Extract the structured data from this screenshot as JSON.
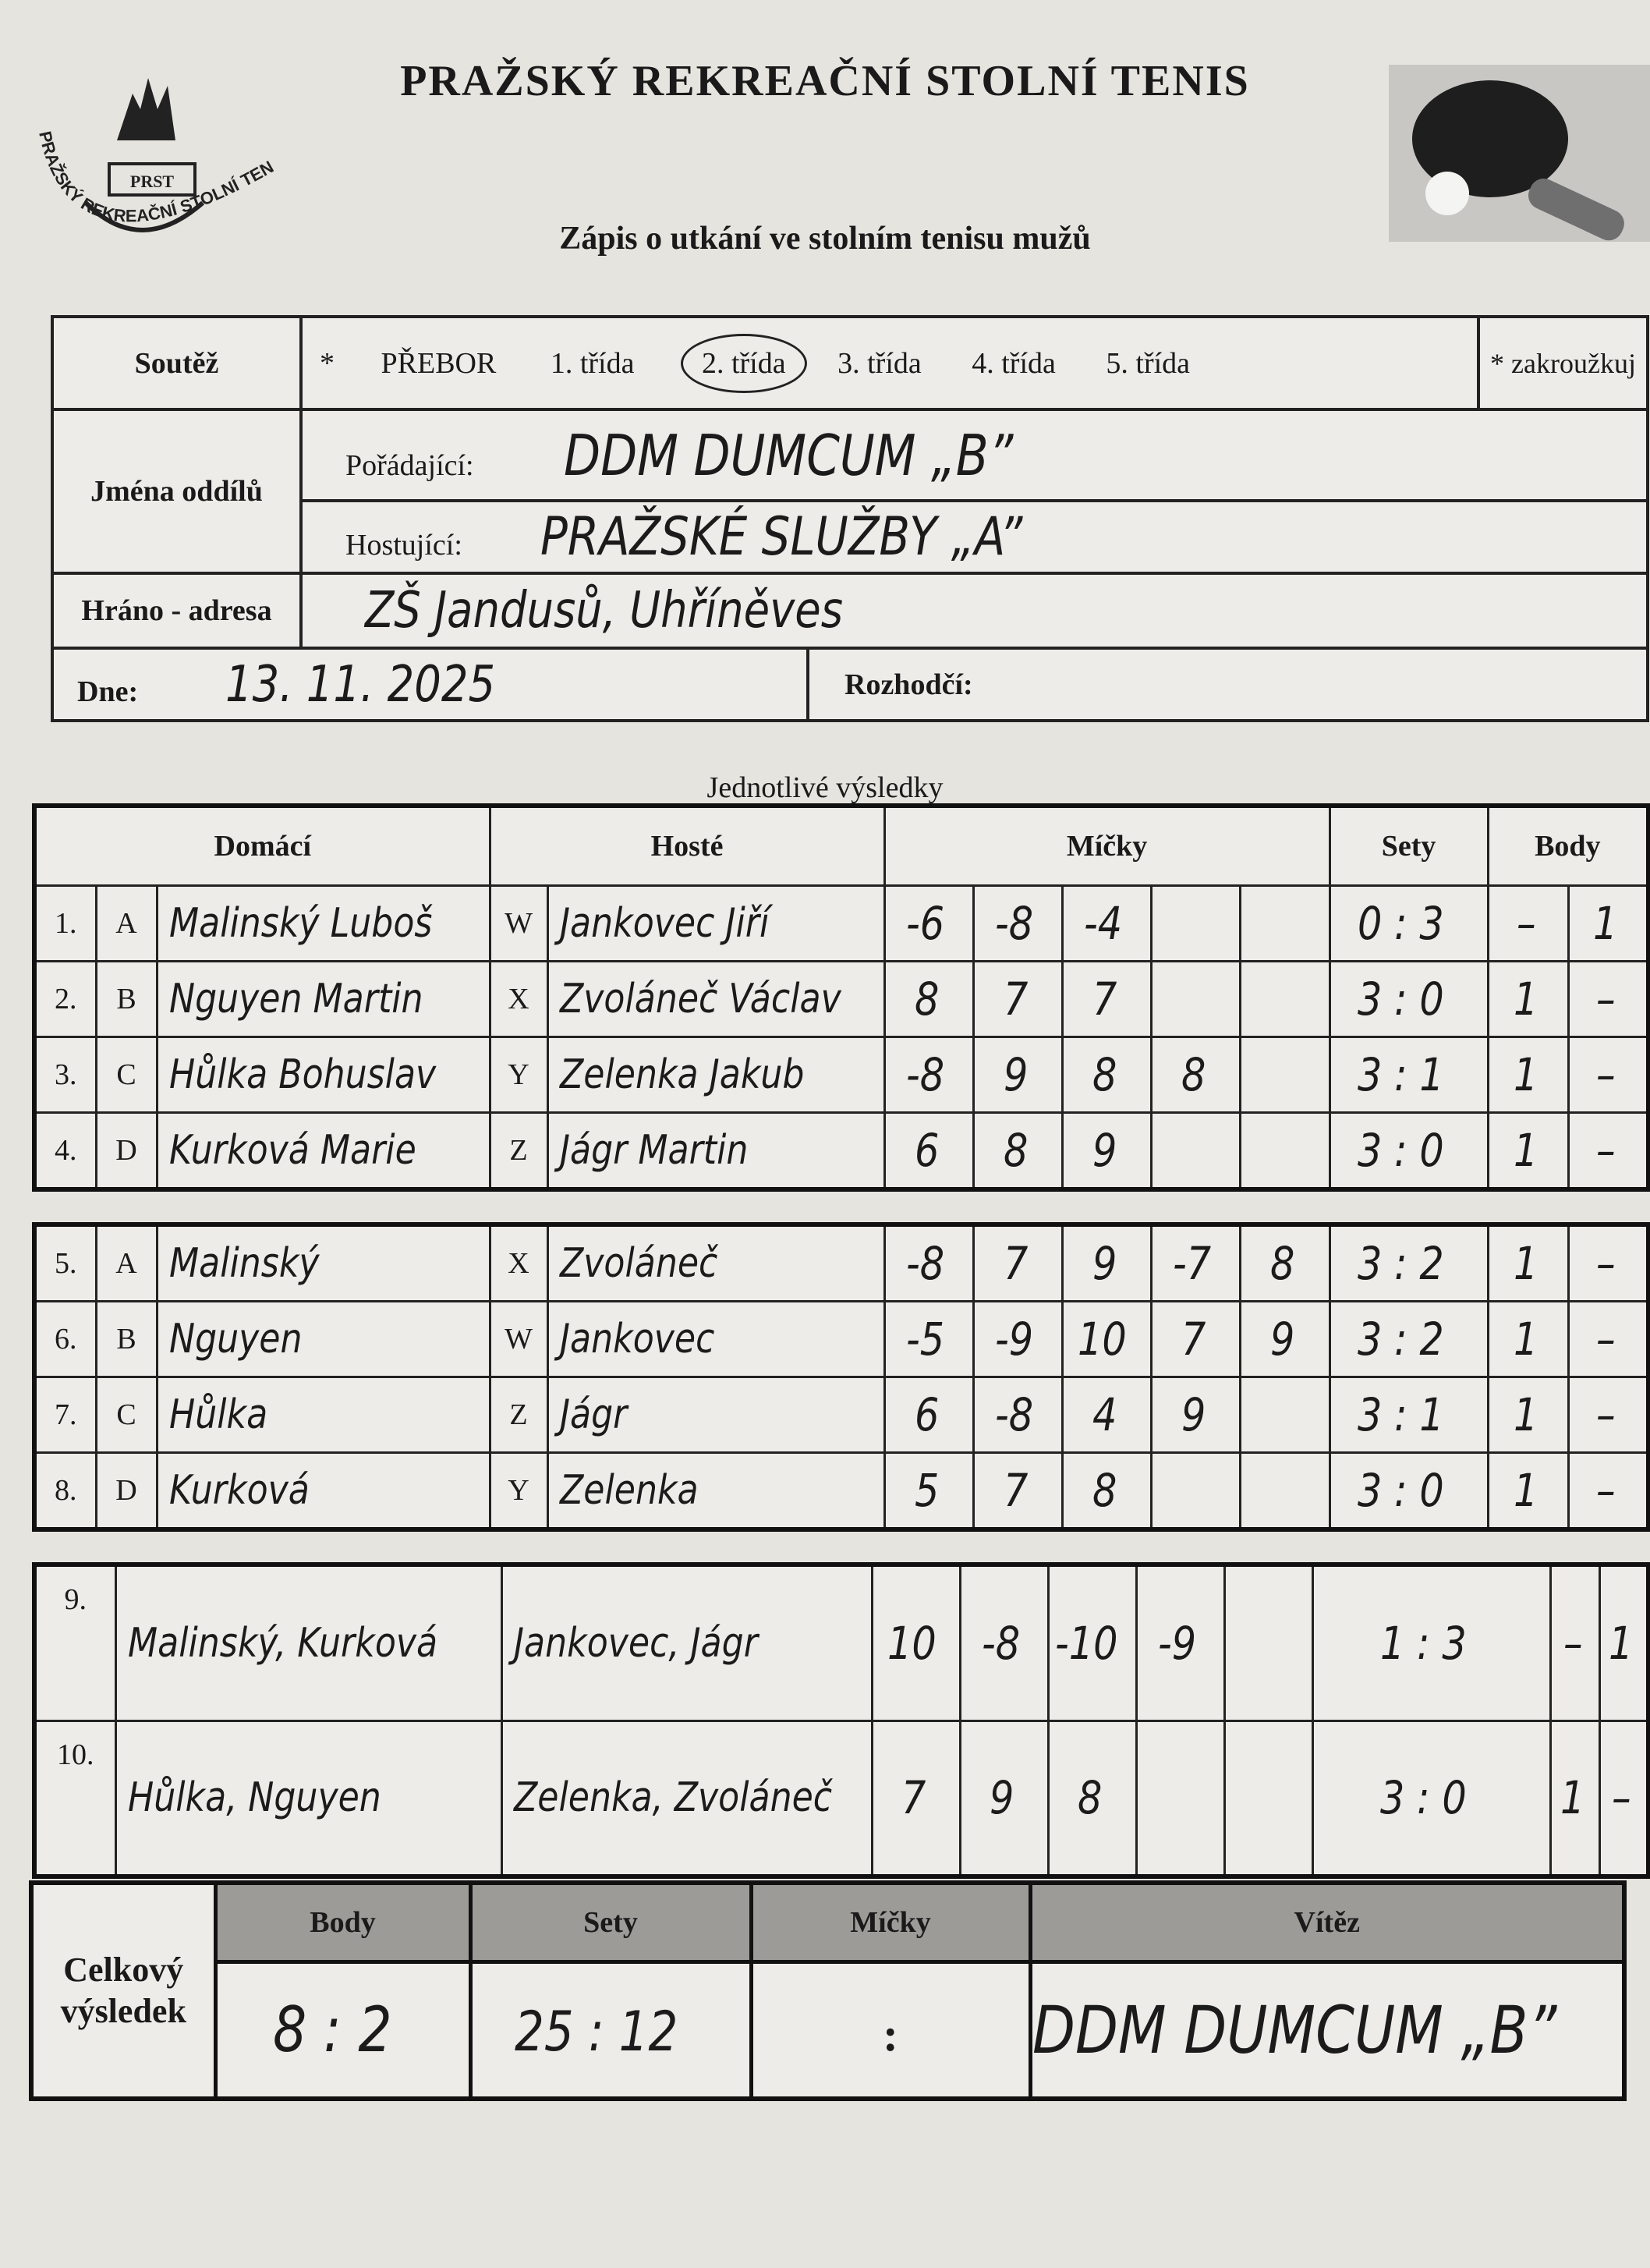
{
  "header": {
    "title": "PRAŽSKÝ REKREAČNÍ STOLNÍ TENIS",
    "subtitle": "Zápis o utkání ve stolním tenisu mužů",
    "logo_text": "PRAŽSKÝ REKREAČNÍ STOLNÍ TENIS",
    "logo_abbr": "PRST"
  },
  "info": {
    "competition_label": "Soutěž",
    "star": "*",
    "classes": [
      "PŘEBOR",
      "1. třída",
      "2. třída",
      "3. třída",
      "4. třída",
      "5. třída"
    ],
    "selected_class": "2. třída",
    "circle_note": "* zakroužkuj",
    "teams_label": "Jména  oddílů",
    "home_label": "Pořádající:",
    "home_team": "DDM DUMCUM „B”",
    "guest_label": "Hostující:",
    "guest_team": "PRAŽSKÉ SLUŽBY „A”",
    "venue_label": "Hráno - adresa",
    "venue": "ZŠ Jandusů, Uhříněves",
    "date_label": "Dne:",
    "date": "13. 11. 2025",
    "referee_label": "Rozhodčí:",
    "referee": ""
  },
  "results": {
    "section_title": "Jednotlivé  výsledky",
    "columns": {
      "home": "Domácí",
      "guests": "Hosté",
      "balls": "Míčky",
      "sets": "Sety",
      "points": "Body"
    },
    "singles": [
      {
        "no": "1.",
        "hl": "A",
        "home": "Malinský Luboš",
        "gl": "W",
        "guest": "Jankovec Jiří",
        "balls": [
          "-6",
          "-8",
          "-4",
          "",
          ""
        ],
        "sets": "0 : 3",
        "ph": "–",
        "pg": "1"
      },
      {
        "no": "2.",
        "hl": "B",
        "home": "Nguyen Martin",
        "gl": "X",
        "guest": "Zvoláneč Václav",
        "balls": [
          "8",
          "7",
          "7",
          "",
          ""
        ],
        "sets": "3 : 0",
        "ph": "1",
        "pg": "–"
      },
      {
        "no": "3.",
        "hl": "C",
        "home": "Hůlka Bohuslav",
        "gl": "Y",
        "guest": "Zelenka Jakub",
        "balls": [
          "-8",
          "9",
          "8",
          "8",
          ""
        ],
        "sets": "3 : 1",
        "ph": "1",
        "pg": "–"
      },
      {
        "no": "4.",
        "hl": "D",
        "home": "Kurková Marie",
        "gl": "Z",
        "guest": "Jágr Martin",
        "balls": [
          "6",
          "8",
          "9",
          "",
          ""
        ],
        "sets": "3 : 0",
        "ph": "1",
        "pg": "–"
      },
      {
        "no": "5.",
        "hl": "A",
        "home": "Malinský",
        "gl": "X",
        "guest": "Zvoláneč",
        "balls": [
          "-8",
          "7",
          "9",
          "-7",
          "8"
        ],
        "sets": "3 : 2",
        "ph": "1",
        "pg": "–"
      },
      {
        "no": "6.",
        "hl": "B",
        "home": "Nguyen",
        "gl": "W",
        "guest": "Jankovec",
        "balls": [
          "-5",
          "-9",
          "10",
          "7",
          "9"
        ],
        "sets": "3 : 2",
        "ph": "1",
        "pg": "–"
      },
      {
        "no": "7.",
        "hl": "C",
        "home": "Hůlka",
        "gl": "Z",
        "guest": "Jágr",
        "balls": [
          "6",
          "-8",
          "4",
          "9",
          ""
        ],
        "sets": "3 : 1",
        "ph": "1",
        "pg": "–"
      },
      {
        "no": "8.",
        "hl": "D",
        "home": "Kurková",
        "gl": "Y",
        "guest": "Zelenka",
        "balls": [
          "5",
          "7",
          "8",
          "",
          ""
        ],
        "sets": "3 : 0",
        "ph": "1",
        "pg": "–"
      }
    ],
    "doubles": [
      {
        "no": "9.",
        "home": "Malinský, Kurková",
        "guest": "Jankovec, Jágr",
        "balls": [
          "10",
          "-8",
          "-10",
          "-9",
          ""
        ],
        "sets": "1 : 3",
        "ph": "–",
        "pg": "1"
      },
      {
        "no": "10.",
        "home": "Hůlka, Nguyen",
        "guest": "Zelenka, Zvoláneč",
        "balls": [
          "7",
          "9",
          "8",
          "",
          ""
        ],
        "sets": "3 : 0",
        "ph": "1",
        "pg": "–"
      }
    ]
  },
  "summary": {
    "label": "Celkový výsledek",
    "points_label": "Body",
    "points": "8 : 2",
    "sets_label": "Sety",
    "sets": "25 : 12",
    "balls_label": "Míčky",
    "balls": ":",
    "winner_label": "Vítěz",
    "winner": "DDM DUMCUM „B”"
  }
}
